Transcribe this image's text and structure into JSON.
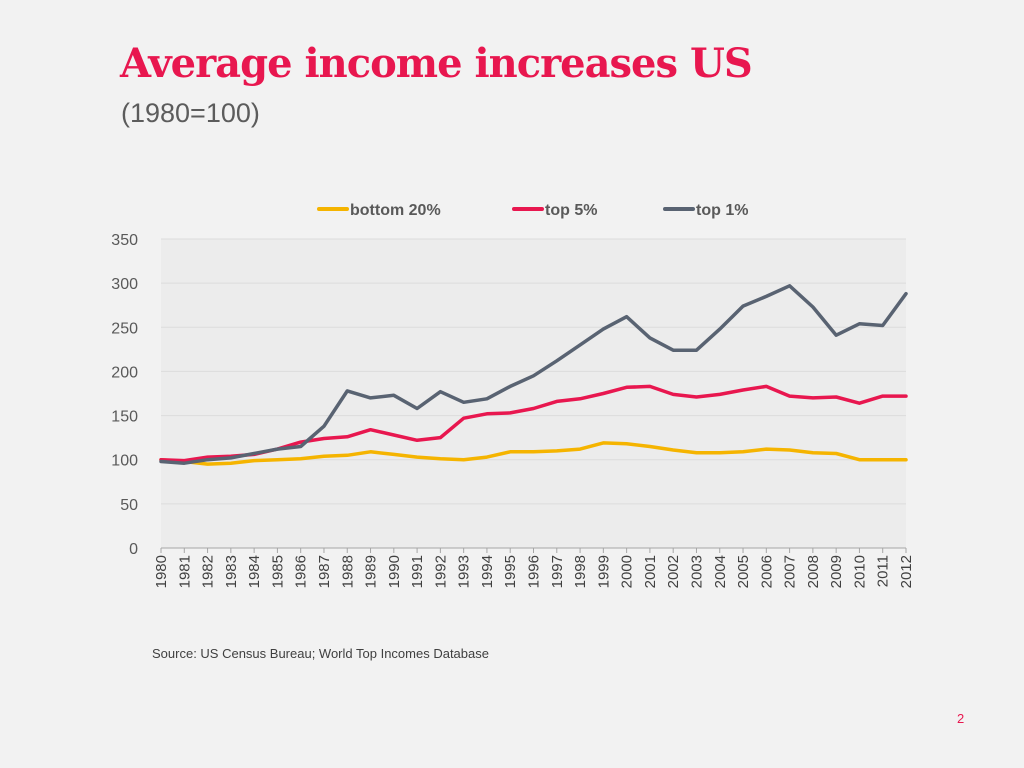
{
  "slide": {
    "title": "Average income increases US",
    "subtitle": "(1980=100)",
    "source": "Source: US Census Bureau; World Top Incomes Database",
    "page_number": "2"
  },
  "chart_data": {
    "type": "line",
    "title": "",
    "xlabel": "",
    "ylabel": "",
    "ylim": [
      0,
      350
    ],
    "yticks": [
      0,
      50,
      100,
      150,
      200,
      250,
      300,
      350
    ],
    "grid": true,
    "legend_position": "top-center",
    "x": [
      "1980",
      "1981",
      "1982",
      "1983",
      "1984",
      "1985",
      "1986",
      "1987",
      "1988",
      "1989",
      "1990",
      "1991",
      "1992",
      "1993",
      "1994",
      "1995",
      "1996",
      "1997",
      "1998",
      "1999",
      "2000",
      "2001",
      "2002",
      "2003",
      "2004",
      "2005",
      "2006",
      "2007",
      "2008",
      "2009",
      "2010",
      "2011",
      "2012"
    ],
    "series": [
      {
        "name": "bottom 20%",
        "color": "#f5b400",
        "values": [
          100,
          98,
          95,
          96,
          99,
          100,
          101,
          104,
          105,
          109,
          106,
          103,
          101,
          100,
          103,
          109,
          109,
          110,
          112,
          119,
          118,
          115,
          111,
          108,
          108,
          109,
          112,
          111,
          108,
          107,
          100,
          100,
          100
        ]
      },
      {
        "name": "top 5%",
        "color": "#e8174f",
        "values": [
          100,
          99,
          103,
          104,
          106,
          112,
          120,
          124,
          126,
          134,
          128,
          122,
          125,
          147,
          152,
          153,
          158,
          166,
          169,
          175,
          182,
          183,
          174,
          171,
          174,
          179,
          183,
          172,
          170,
          171,
          164,
          172,
          172
        ]
      },
      {
        "name": "top 1%",
        "color": "#596372",
        "values": [
          98,
          96,
          100,
          102,
          107,
          112,
          115,
          138,
          178,
          170,
          173,
          158,
          177,
          165,
          169,
          183,
          195,
          212,
          230,
          248,
          262,
          238,
          224,
          224,
          248,
          274,
          285,
          297,
          273,
          241,
          254,
          252,
          288
        ]
      }
    ]
  }
}
